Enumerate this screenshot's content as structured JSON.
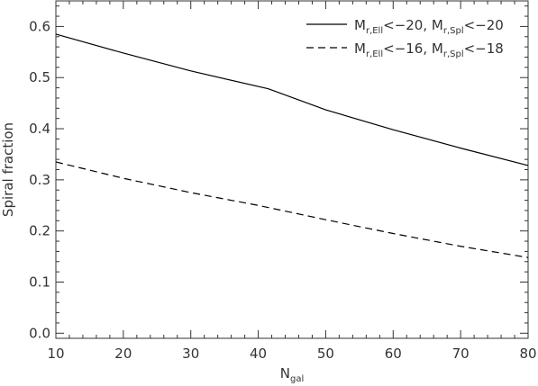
{
  "chart_data": {
    "type": "line",
    "xlabel": {
      "main": "N",
      "sub": "gal"
    },
    "ylabel": "Spiral fraction",
    "xlim": [
      10,
      80
    ],
    "ylim": [
      -0.01,
      0.65
    ],
    "xticks": [
      10,
      20,
      30,
      40,
      50,
      60,
      70,
      80
    ],
    "yticks": [
      0.0,
      0.1,
      0.2,
      0.3,
      0.4,
      0.5,
      0.6
    ],
    "xtick_labels": [
      "10",
      "20",
      "30",
      "40",
      "50",
      "60",
      "70",
      "80"
    ],
    "ytick_labels": [
      "0.0",
      "0.1",
      "0.2",
      "0.3",
      "0.4",
      "0.5",
      "0.6"
    ],
    "grid": false,
    "legend_position": "top-right",
    "series": [
      {
        "name": "M_{r,Ell}<−20, M_{r,Spl}<−20",
        "legend": {
          "p1": "M",
          "s1": "r,Ell",
          "mid": "<−20, M",
          "s2": "r,Spl",
          "end": "<−20"
        },
        "linestyle": "solid",
        "color": "#000000",
        "x": [
          10,
          20,
          30,
          41.5,
          50,
          60,
          70,
          80
        ],
        "y": [
          0.585,
          0.548,
          0.513,
          0.478,
          0.437,
          0.398,
          0.362,
          0.328
        ]
      },
      {
        "name": "M_{r,Ell}<−16, M_{r,Spl}<−18",
        "legend": {
          "p1": "M",
          "s1": "r,Ell",
          "mid": "<−16, M",
          "s2": "r,Spl",
          "end": "<−18"
        },
        "linestyle": "dashed",
        "color": "#000000",
        "x": [
          10,
          20,
          30,
          40,
          50,
          60,
          70,
          80
        ],
        "y": [
          0.335,
          0.303,
          0.275,
          0.25,
          0.222,
          0.195,
          0.17,
          0.148
        ]
      }
    ]
  }
}
